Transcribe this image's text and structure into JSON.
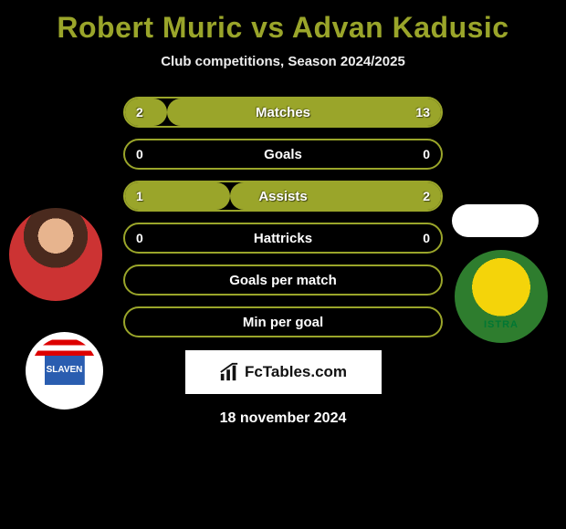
{
  "title_color": "#9aa52a",
  "title": "Robert Muric vs Advan Kadusic",
  "subtitle": "Club competitions, Season 2024/2025",
  "row_width": 350,
  "row_border_color": "#9aa52a",
  "fill_color": "#9aa52a",
  "rows": [
    {
      "label": "Matches",
      "left": "2",
      "right": "13",
      "lv": 2,
      "rv": 13
    },
    {
      "label": "Goals",
      "left": "0",
      "right": "0",
      "lv": 0,
      "rv": 0
    },
    {
      "label": "Assists",
      "left": "1",
      "right": "2",
      "lv": 1,
      "rv": 2
    },
    {
      "label": "Hattricks",
      "left": "0",
      "right": "0",
      "lv": 0,
      "rv": 0
    },
    {
      "label": "Goals per match",
      "left": "",
      "right": "",
      "lv": 0,
      "rv": 0
    },
    {
      "label": "Min per goal",
      "left": "",
      "right": "",
      "lv": 0,
      "rv": 0
    }
  ],
  "left_club_text": "SLAVEN",
  "brand_text": "FcTables.com",
  "footer_date": "18 november 2024"
}
